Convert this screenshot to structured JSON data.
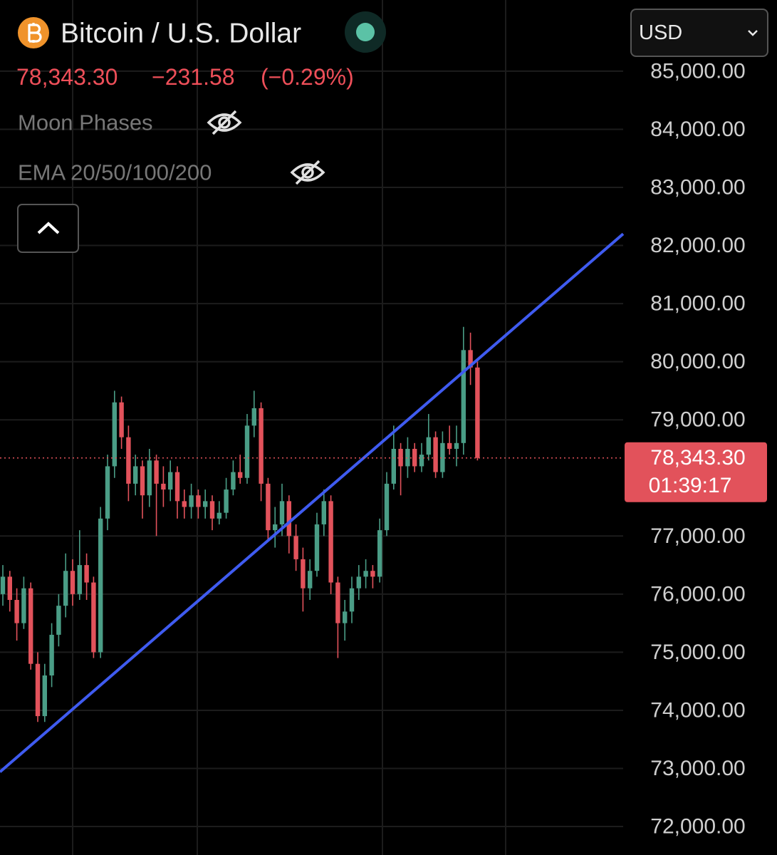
{
  "header": {
    "title": "Bitcoin / U.S. Dollar",
    "price": "78,343.30",
    "change": "−231.58",
    "change_percent": "(−0.29%)",
    "indicators": [
      "Moon Phases",
      "EMA 20/50/100/200"
    ],
    "currency": "USD"
  },
  "chart_data": {
    "type": "candlestick",
    "up_color": "#4a9d86",
    "down_color": "#e2525b",
    "open": [
      76000,
      76300,
      75900,
      75500,
      76100,
      74800,
      73900,
      74600,
      75300,
      75800,
      76400,
      76000,
      76500,
      76200,
      75000,
      77300,
      78200,
      79300,
      78700,
      77900,
      78200,
      77700,
      78300,
      77900,
      77800,
      78100,
      77600,
      77500,
      77700,
      77500,
      77600,
      77300,
      77400,
      77800,
      78100,
      78000,
      78900,
      79200,
      77900,
      77100,
      77200,
      77600,
      77000,
      76600,
      76100,
      76400,
      77200,
      77600,
      76200,
      75500,
      75700,
      76100,
      76300,
      76400,
      76300,
      77100,
      77900,
      78500,
      78200,
      78500,
      78200,
      78400,
      78700,
      78100,
      78600,
      78500,
      78600,
      80200,
      79900
    ],
    "high": [
      76500,
      76400,
      76100,
      76300,
      76200,
      75000,
      74800,
      75500,
      76000,
      76700,
      76600,
      77100,
      76700,
      76300,
      77500,
      78400,
      79500,
      79400,
      78900,
      78400,
      78300,
      78500,
      78400,
      78200,
      78300,
      78200,
      77800,
      77900,
      77800,
      77800,
      77700,
      77600,
      78000,
      78300,
      78400,
      79100,
      79500,
      79300,
      78000,
      77500,
      77900,
      77700,
      77200,
      76800,
      76600,
      77400,
      77800,
      77700,
      76300,
      75900,
      76300,
      76500,
      76600,
      76500,
      77300,
      78100,
      78900,
      78600,
      78700,
      78600,
      78600,
      79100,
      78800,
      78800,
      78900,
      78900,
      80600,
      80500,
      80000
    ],
    "low": [
      75800,
      75700,
      75200,
      75400,
      74700,
      73800,
      73800,
      74400,
      75100,
      75600,
      75800,
      75900,
      75900,
      74900,
      74900,
      77100,
      78000,
      78500,
      77600,
      77700,
      77300,
      77500,
      77000,
      77500,
      77600,
      77300,
      77300,
      77300,
      77300,
      77300,
      77100,
      77200,
      77300,
      77700,
      77900,
      77900,
      78700,
      77600,
      76900,
      76800,
      77000,
      76700,
      76400,
      75700,
      75900,
      76300,
      77000,
      76000,
      74900,
      75200,
      75500,
      75900,
      76100,
      76100,
      76200,
      77000,
      77800,
      77700,
      78000,
      78100,
      78100,
      78300,
      78000,
      78000,
      78400,
      78200,
      78400,
      79600,
      78300
    ],
    "close": [
      76300,
      75900,
      75500,
      76100,
      74800,
      73900,
      74600,
      75300,
      75800,
      76400,
      76000,
      76500,
      76200,
      75000,
      77300,
      78200,
      79300,
      78700,
      77900,
      78200,
      77700,
      78300,
      77900,
      77800,
      78100,
      77600,
      77500,
      77700,
      77500,
      77600,
      77300,
      77400,
      77800,
      78100,
      78000,
      78900,
      79200,
      77900,
      77100,
      77200,
      77600,
      77000,
      76600,
      76100,
      76400,
      77200,
      77600,
      76200,
      75500,
      75700,
      76100,
      76300,
      76400,
      76300,
      77100,
      77900,
      78500,
      78200,
      78500,
      78200,
      78400,
      78700,
      78100,
      78600,
      78500,
      78600,
      80200,
      79900,
      78343.3
    ],
    "ylim": [
      71510,
      86225
    ],
    "yticks": [
      {
        "value": 85000,
        "label": "85,000.00"
      },
      {
        "value": 84000,
        "label": "84,000.00"
      },
      {
        "value": 83000,
        "label": "83,000.00"
      },
      {
        "value": 82000,
        "label": "82,000.00"
      },
      {
        "value": 81000,
        "label": "81,000.00"
      },
      {
        "value": 80000,
        "label": "80,000.00"
      },
      {
        "value": 79000,
        "label": "79,000.00"
      },
      {
        "value": 77000,
        "label": "77,000.00"
      },
      {
        "value": 76000,
        "label": "76,000.00"
      },
      {
        "value": 75000,
        "label": "75,000.00"
      },
      {
        "value": 74000,
        "label": "74,000.00"
      },
      {
        "value": 73000,
        "label": "73,000.00"
      },
      {
        "value": 72000,
        "label": "72,000.00"
      }
    ],
    "grid": true,
    "last_price": {
      "value": 78343.3,
      "label": "78,343.30"
    },
    "countdown": "01:39:17",
    "trend_line": {
      "color": "#3f5bf0",
      "values": [
        72940,
        82200
      ]
    }
  }
}
